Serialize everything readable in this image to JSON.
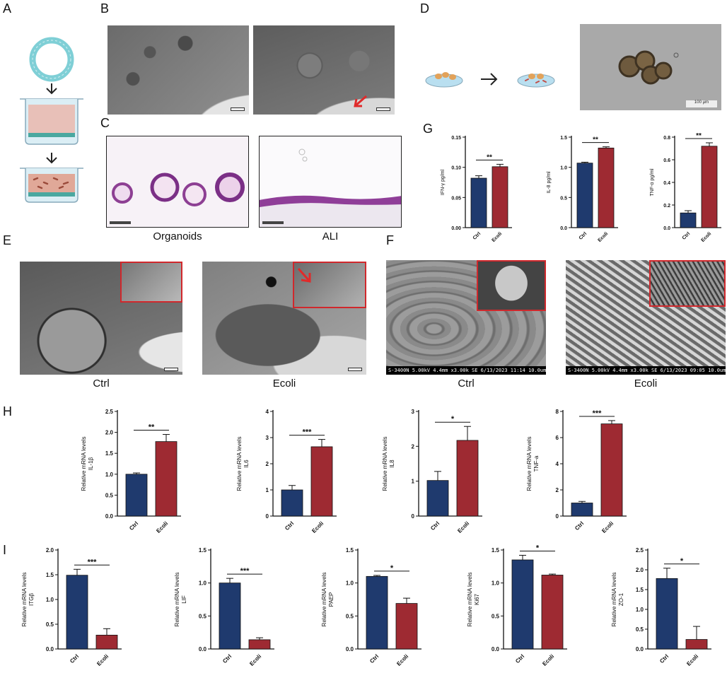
{
  "panel_letters": {
    "A": "A",
    "B": "B",
    "C": "C",
    "D": "D",
    "E": "E",
    "F": "F",
    "G": "G",
    "H": "H",
    "I": "I"
  },
  "captions": {
    "c_left": "Organoids",
    "c_right": "ALI",
    "e_left": "Ctrl",
    "e_right": "Ecoli",
    "f_left": "Ctrl",
    "f_right": "Ecoli"
  },
  "sem": {
    "ctrl": "S-3400N 5.00kV 4.4mm x3.00k SE  6/13/2023 11:14          10.0um",
    "ecoli": "S-3400N 5.00kV 4.4mm x3.00k SE  6/13/2023 09:05          10.0um"
  },
  "d_scale": "100 µm",
  "colors": {
    "ctrl": "#1f3a6e",
    "ecoli": "#9e2a32",
    "inset_border": "#d0282c"
  },
  "chart_data": [
    {
      "id": "g1",
      "panel": "G",
      "type": "bar",
      "categories": [
        "Ctrl",
        "Ecoli"
      ],
      "values": [
        0.082,
        0.101
      ],
      "errors": [
        0.004,
        0.004
      ],
      "ylabel": "IFN-γ pg/ml",
      "ylim": [
        0,
        0.15
      ],
      "ticks": [
        "0.00",
        "0.05",
        "0.10",
        "0.15"
      ],
      "sig": "**"
    },
    {
      "id": "g2",
      "panel": "G",
      "type": "bar",
      "categories": [
        "Ctrl",
        "Ecoli"
      ],
      "values": [
        1.07,
        1.32
      ],
      "errors": [
        0.015,
        0.02
      ],
      "ylabel": "IL-8 pg/ml",
      "ylim": [
        0,
        1.5
      ],
      "ticks": [
        "0.0",
        "0.5",
        "1.0",
        "1.5"
      ],
      "sig": "**"
    },
    {
      "id": "g3",
      "panel": "G",
      "type": "bar",
      "categories": [
        "Ctrl",
        "Ecoli"
      ],
      "values": [
        0.13,
        0.72
      ],
      "errors": [
        0.02,
        0.03
      ],
      "ylabel": "TNF-α pg/ml",
      "ylim": [
        0,
        0.8
      ],
      "ticks": [
        "0.0",
        "0.2",
        "0.4",
        "0.6",
        "0.8"
      ],
      "sig": "**"
    },
    {
      "id": "h1",
      "panel": "H",
      "type": "bar",
      "categories": [
        "Ctrl",
        "Ecoli"
      ],
      "values": [
        1.0,
        1.78
      ],
      "errors": [
        0.03,
        0.17
      ],
      "ylabel": "Relative mRNA levels\nIL-1β",
      "ylim": [
        0,
        2.5
      ],
      "ticks": [
        "0.0",
        "0.5",
        "1.0",
        "1.5",
        "2.0",
        "2.5"
      ],
      "sig": "**"
    },
    {
      "id": "h2",
      "panel": "H",
      "type": "bar",
      "categories": [
        "Ctrl",
        "Ecoli"
      ],
      "values": [
        1.0,
        2.65
      ],
      "errors": [
        0.17,
        0.28
      ],
      "ylabel": "Relative mRNA levels\nIL6",
      "ylim": [
        0,
        4
      ],
      "ticks": [
        "0",
        "1",
        "2",
        "3",
        "4"
      ],
      "sig": "***"
    },
    {
      "id": "h3",
      "panel": "H",
      "type": "bar",
      "categories": [
        "Ctrl",
        "Ecoli"
      ],
      "values": [
        1.02,
        2.17
      ],
      "errors": [
        0.26,
        0.4
      ],
      "ylabel": "Relative mRNA levels\nIL8",
      "ylim": [
        0,
        3
      ],
      "ticks": [
        "0",
        "1",
        "2",
        "3"
      ],
      "sig": "*"
    },
    {
      "id": "h4",
      "panel": "H",
      "type": "bar",
      "categories": [
        "Ctrl",
        "Ecoli"
      ],
      "values": [
        1.0,
        7.05
      ],
      "errors": [
        0.12,
        0.25
      ],
      "ylabel": "Relative mRNA levels\nTNF-a",
      "ylim": [
        0,
        8
      ],
      "ticks": [
        "0",
        "2",
        "4",
        "6",
        "8"
      ],
      "sig": "***"
    },
    {
      "id": "i1",
      "panel": "I",
      "type": "bar",
      "categories": [
        "Ctrl",
        "Ecoli"
      ],
      "values": [
        1.49,
        0.28
      ],
      "errors": [
        0.12,
        0.13
      ],
      "ylabel": "Relative mRNA levels\nITGβ",
      "ylim": [
        0,
        2
      ],
      "ticks": [
        "0.0",
        "0.5",
        "1.0",
        "1.5",
        "2.0"
      ],
      "sig": "***"
    },
    {
      "id": "i2",
      "panel": "I",
      "type": "bar",
      "categories": [
        "Ctrl",
        "Ecoli"
      ],
      "values": [
        1.0,
        0.14
      ],
      "errors": [
        0.07,
        0.03
      ],
      "ylabel": "Relative mRNA levels\nLIF",
      "ylim": [
        0,
        1.5
      ],
      "ticks": [
        "0.0",
        "0.5",
        "1.0",
        "1.5"
      ],
      "sig": "***"
    },
    {
      "id": "i3",
      "panel": "I",
      "type": "bar",
      "categories": [
        "Ctrl",
        "Ecoli"
      ],
      "values": [
        1.1,
        0.69
      ],
      "errors": [
        0.015,
        0.08
      ],
      "ylabel": "Relative mRNA levels\nPAEP",
      "ylim": [
        0,
        1.5
      ],
      "ticks": [
        "0.0",
        "0.5",
        "1.0",
        "1.5"
      ],
      "sig": "*"
    },
    {
      "id": "i4",
      "panel": "I",
      "type": "bar",
      "categories": [
        "Ctrl",
        "Ecoli"
      ],
      "values": [
        1.35,
        1.12
      ],
      "errors": [
        0.07,
        0.015
      ],
      "ylabel": "Relative mRNA levels\nKi67",
      "ylim": [
        0,
        1.5
      ],
      "ticks": [
        "0.0",
        "0.5",
        "1.0",
        "1.5"
      ],
      "sig": "*"
    },
    {
      "id": "i5",
      "panel": "I",
      "type": "bar",
      "categories": [
        "Ctrl",
        "Ecoli"
      ],
      "values": [
        1.78,
        0.24
      ],
      "errors": [
        0.26,
        0.33
      ],
      "ylabel": "Relative mRNA levels\nZO-1",
      "ylim": [
        0,
        2.5
      ],
      "ticks": [
        "0.0",
        "0.5",
        "1.0",
        "1.5",
        "2.0",
        "2.5"
      ],
      "sig": "*"
    }
  ]
}
